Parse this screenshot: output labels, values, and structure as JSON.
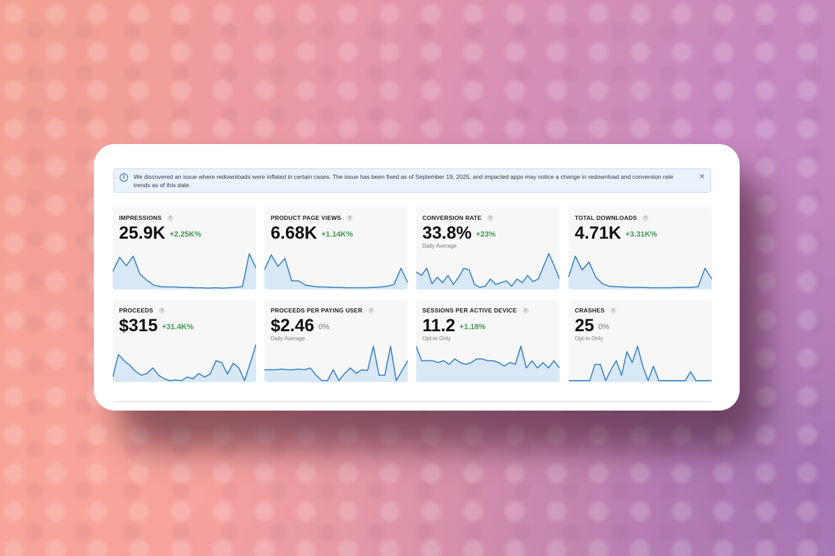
{
  "banner": {
    "message": "We discovered an issue where redownloads were inflated in certain cases. The issue has been fixed as of September 19, 2025, and impacted apps may notice a change in redownload and conversion rate trends as of this date.",
    "info_icon": "info-icon",
    "close_icon": "close-icon"
  },
  "colors": {
    "line": "#2f7fc1",
    "fill": "#cfe3f5",
    "positive": "#3b9b4b",
    "tile_bg": "#f7f7f8"
  },
  "metrics": [
    {
      "title": "IMPRESSIONS",
      "help": "?",
      "value": "25.9K",
      "change": "+2.25K%",
      "change_type": "positive",
      "sub": "",
      "trend": [
        0.45,
        0.85,
        0.62,
        0.88,
        0.38,
        0.22,
        0.08,
        0.04,
        0.03,
        0.03,
        0.02,
        0.02,
        0.01,
        0.01,
        0.0,
        0.01,
        0.0,
        0.01,
        0.02,
        0.04,
        0.95,
        0.55
      ]
    },
    {
      "title": "PRODUCT PAGE VIEWS",
      "help": "?",
      "value": "6.68K",
      "change": "+1.14K%",
      "change_type": "positive",
      "sub": "",
      "trend": [
        0.5,
        0.92,
        0.6,
        0.82,
        0.2,
        0.2,
        0.08,
        0.05,
        0.03,
        0.03,
        0.02,
        0.02,
        0.01,
        0.01,
        0.01,
        0.01,
        0.02,
        0.03,
        0.05,
        0.1,
        0.55,
        0.15
      ]
    },
    {
      "title": "CONVERSION RATE",
      "help": "?",
      "value": "33.8%",
      "change": "+23%",
      "change_type": "positive",
      "sub": "Daily Average",
      "trend": [
        0.45,
        0.35,
        0.55,
        0.12,
        0.3,
        0.15,
        0.35,
        0.1,
        0.3,
        0.55,
        0.5,
        0.1,
        0.02,
        0.05,
        0.25,
        0.1,
        0.15,
        0.2,
        0.05,
        0.25,
        0.15,
        0.35,
        0.18,
        0.25,
        0.6,
        0.95,
        0.62,
        0.25
      ]
    },
    {
      "title": "TOTAL DOWNLOADS",
      "help": "?",
      "value": "4.71K",
      "change": "+3.31K%",
      "change_type": "positive",
      "sub": "",
      "trend": [
        0.3,
        0.88,
        0.5,
        0.72,
        0.3,
        0.12,
        0.05,
        0.04,
        0.03,
        0.02,
        0.02,
        0.02,
        0.01,
        0.01,
        0.01,
        0.01,
        0.02,
        0.02,
        0.02,
        0.04,
        0.55,
        0.25
      ]
    },
    {
      "title": "PROCEEDS",
      "help": "?",
      "value": "$315",
      "change": "+31.4K%",
      "change_type": "positive",
      "sub": "",
      "trend": [
        0.1,
        0.72,
        0.55,
        0.42,
        0.25,
        0.15,
        0.2,
        0.35,
        0.15,
        0.05,
        0.0,
        0.02,
        0.0,
        0.1,
        0.05,
        0.2,
        0.1,
        0.18,
        0.55,
        0.5,
        0.18,
        0.48,
        0.35,
        0.0,
        0.5,
        1.0
      ]
    },
    {
      "title": "PROCEEDS PER PAYING USER",
      "help": "?",
      "value": "$2.46",
      "change": "0%",
      "change_type": "neutral",
      "sub": "Daily Average",
      "trend": [
        0.3,
        0.3,
        0.3,
        0.32,
        0.3,
        0.3,
        0.32,
        0.3,
        0.35,
        0.15,
        0.0,
        0.0,
        0.3,
        0.0,
        0.2,
        0.35,
        0.2,
        0.3,
        0.28,
        0.95,
        0.15,
        0.15,
        0.95,
        0.0,
        0.28,
        0.55
      ]
    },
    {
      "title": "SESSIONS PER ACTIVE DEVICE",
      "help": "?",
      "value": "11.2",
      "change": "+1.18%",
      "change_type": "positive",
      "sub": "Opt-in Only",
      "trend": [
        0.95,
        0.55,
        0.55,
        0.55,
        0.5,
        0.55,
        0.45,
        0.6,
        0.5,
        0.45,
        0.5,
        0.6,
        0.6,
        0.55,
        0.55,
        0.5,
        0.4,
        0.5,
        0.45,
        0.95,
        0.35,
        0.55,
        0.35,
        0.5,
        0.35,
        0.55,
        0.35
      ]
    },
    {
      "title": "CRASHES",
      "help": "?",
      "value": "25",
      "change": "0%",
      "change_type": "neutral",
      "sub": "Opt-in Only",
      "trend": [
        0.0,
        0.0,
        0.0,
        0.0,
        0.0,
        0.45,
        0.45,
        0.0,
        0.3,
        0.55,
        0.15,
        0.8,
        0.5,
        0.95,
        0.4,
        0.0,
        0.4,
        0.0,
        0.0,
        0.0,
        0.0,
        0.0,
        0.0,
        0.25,
        0.0,
        0.0,
        0.0,
        0.0
      ]
    }
  ]
}
